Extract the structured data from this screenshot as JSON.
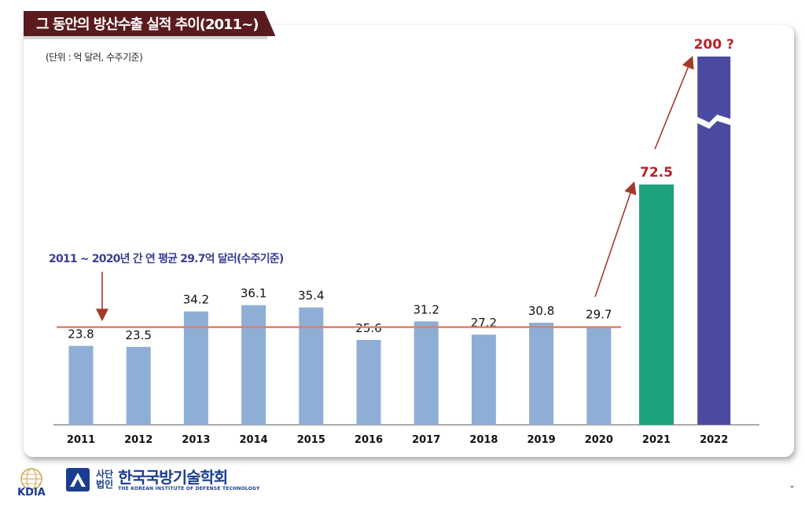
{
  "header": {
    "title": "그 동안의 방산수출 실적 추이(2011~)",
    "unit_note": "(단위 : 억 달러, 수주기준)"
  },
  "chart_data": {
    "type": "bar",
    "title": "그 동안의 방산수출 실적 추이(2011~)",
    "unit": "(단위 : 억 달러, 수주기준)",
    "categories": [
      "2011",
      "2012",
      "2013",
      "2014",
      "2015",
      "2016",
      "2017",
      "2018",
      "2019",
      "2020",
      "2021",
      "2022"
    ],
    "values": [
      23.8,
      23.5,
      34.2,
      36.1,
      35.4,
      25.6,
      31.2,
      27.2,
      30.8,
      29.7,
      72.5,
      200
    ],
    "value_labels": [
      "23.8",
      "23.5",
      "34.2",
      "36.1",
      "35.4",
      "25.6",
      "31.2",
      "27.2",
      "30.8",
      "29.7",
      "72.5",
      "200 ?"
    ],
    "bar_colors": [
      "#8eaed6",
      "#8eaed6",
      "#8eaed6",
      "#8eaed6",
      "#8eaed6",
      "#8eaed6",
      "#8eaed6",
      "#8eaed6",
      "#8eaed6",
      "#8eaed6",
      "#1fa27e",
      "#4a4ba0"
    ],
    "ylim": [
      0,
      90
    ],
    "axis_break_on": "2022",
    "average_line": {
      "value": 29.7,
      "label": "2011 ~ 2020년 간 연 평균 29.7억 달러(수주기준)",
      "color": "#d9826a"
    },
    "trend_arrows": [
      "2020→2021",
      "2021→2022"
    ],
    "highlight_label_color": "#b8202a",
    "grid": false
  },
  "footer": {
    "kdia_logo_text": "KDIA",
    "society_prefix": "사단법인",
    "society_prefix_line1": "사단",
    "society_prefix_line2": "법인",
    "society_name": "한국국방기술학회",
    "society_english": "THE KOREAN INSTITUTE OF DEFENSE TECHNOLOGY",
    "page_mark": "-"
  }
}
